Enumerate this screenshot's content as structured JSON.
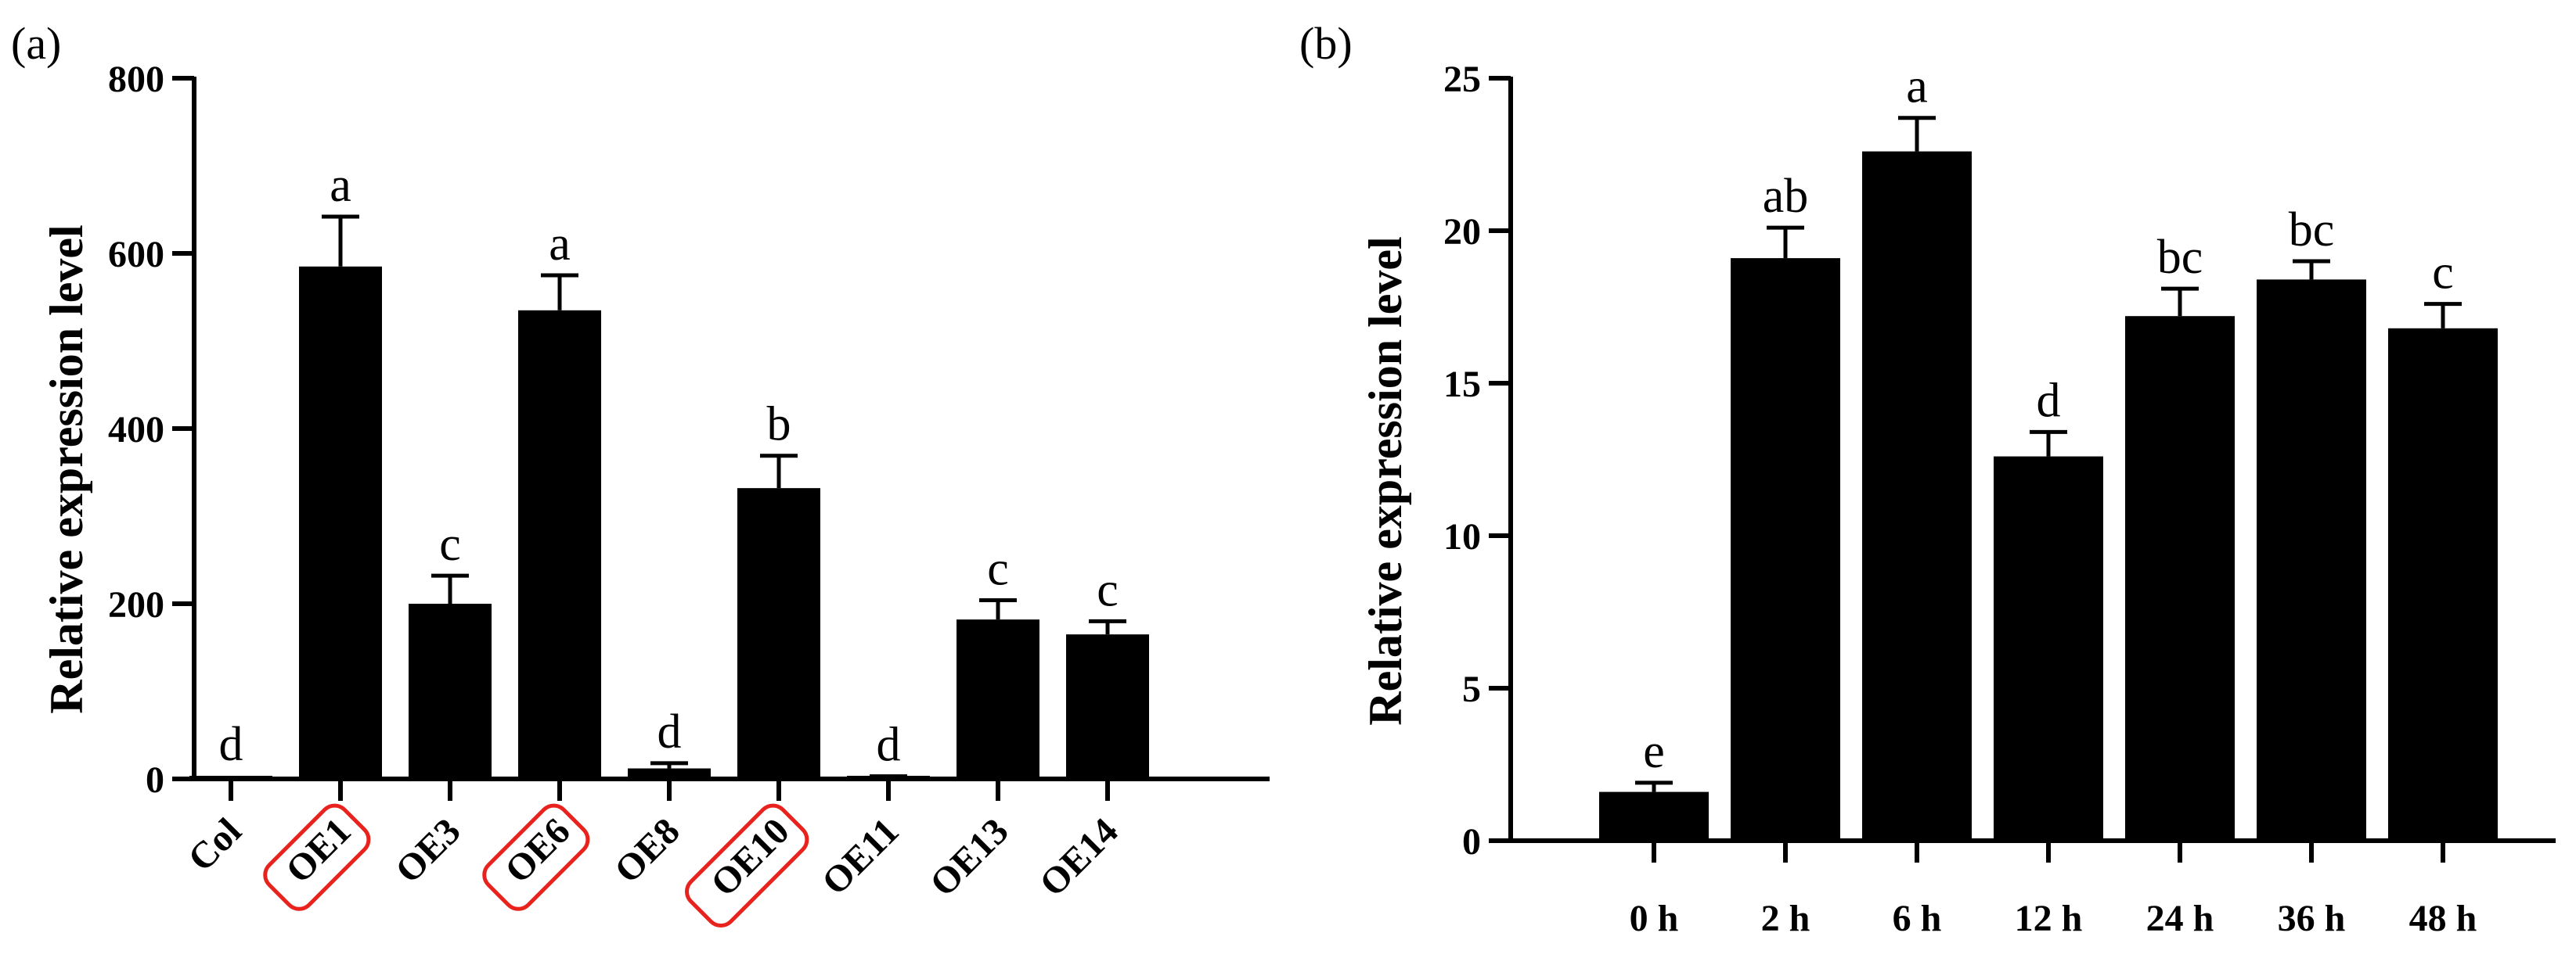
{
  "chart_data": [
    {
      "panel_label": "(a)",
      "type": "bar",
      "ylabel": "Relative expression level",
      "xlabel": "",
      "ylim": [
        0,
        800
      ],
      "yticks": [
        0,
        200,
        400,
        600,
        800
      ],
      "categories": [
        "Col",
        "OE1",
        "OE3",
        "OE6",
        "OE8",
        "OE10",
        "OE11",
        "OE13",
        "OE14"
      ],
      "values": [
        1,
        585,
        200,
        535,
        12,
        332,
        2,
        182,
        165
      ],
      "errors": [
        0,
        57,
        32,
        40,
        6,
        37,
        1,
        22,
        15
      ],
      "significance": [
        "d",
        "a",
        "c",
        "a",
        "d",
        "b",
        "d",
        "c",
        "c"
      ],
      "highlighted": [
        "OE1",
        "OE6",
        "OE10"
      ],
      "tick_label_rotation": -45,
      "bar_color": "#000000",
      "highlight_color": "#e8231d",
      "grid": false
    },
    {
      "panel_label": "(b)",
      "type": "bar",
      "ylabel": "Relative expression level",
      "xlabel": "",
      "ylim": [
        0,
        25
      ],
      "yticks": [
        0,
        5,
        10,
        15,
        20,
        25
      ],
      "categories": [
        "0 h",
        "2 h",
        "6 h",
        "12 h",
        "24 h",
        "36 h",
        "48 h"
      ],
      "values": [
        1.6,
        19.1,
        22.6,
        12.6,
        17.2,
        18.4,
        16.8
      ],
      "errors": [
        0.3,
        1.0,
        1.1,
        0.8,
        0.9,
        0.6,
        0.8
      ],
      "significance": [
        "e",
        "ab",
        "a",
        "d",
        "bc",
        "bc",
        "c"
      ],
      "bar_color": "#000000",
      "grid": false
    }
  ]
}
